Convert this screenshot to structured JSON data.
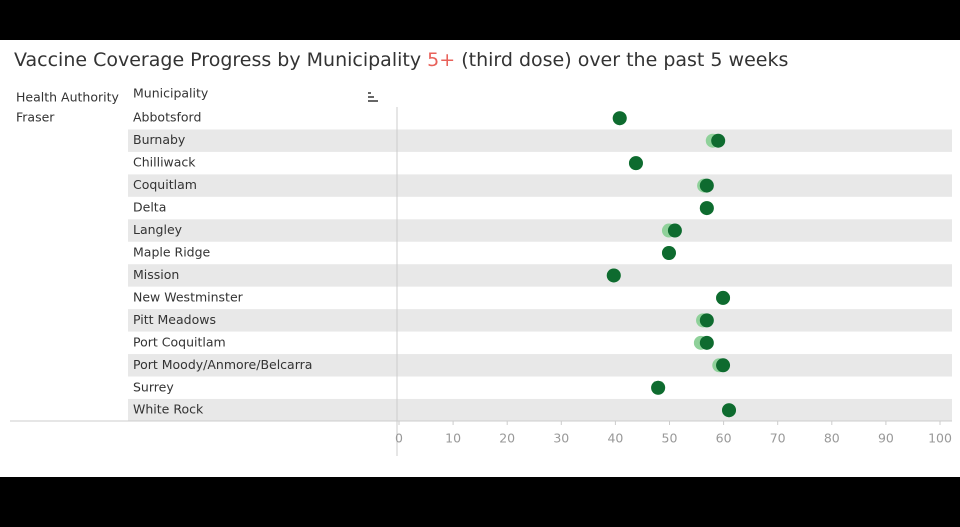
{
  "chart_data": {
    "type": "dot",
    "title": [
      "Vaccine Coverage Progress by Municipality",
      "5+",
      "(third dose) over the past 5 weeks"
    ],
    "title_highlight_color": "#e8615a",
    "row_headers": [
      "Health Authority",
      "Municipality"
    ],
    "group": "Fraser",
    "categories": [
      "Abbotsford",
      "Burnaby",
      "Chilliwack",
      "Coquitlam",
      "Delta",
      "Langley",
      "Maple Ridge",
      "Mission",
      "New Westminster",
      "Pitt Meadows",
      "Port Coquitlam",
      "Port Moody/Anmore/Belcarra",
      "Surrey",
      "White Rock"
    ],
    "series": [
      {
        "color": "#8fd19a",
        "values": [
          40.8,
          58,
          43.8,
          56.4,
          56.9,
          49.9,
          49.9,
          39.7,
          59.9,
          56.2,
          55.8,
          59.2,
          47.9,
          61
        ]
      },
      {
        "color": "#0e6b2f",
        "values": [
          40.8,
          59,
          43.8,
          56.9,
          56.9,
          51,
          49.9,
          39.7,
          59.9,
          56.9,
          56.9,
          59.9,
          47.9,
          61
        ]
      }
    ],
    "xlim": [
      0,
      100
    ],
    "xticks": [
      0,
      10,
      20,
      30,
      40,
      50,
      60,
      70,
      80,
      90,
      100
    ],
    "banding": true
  }
}
